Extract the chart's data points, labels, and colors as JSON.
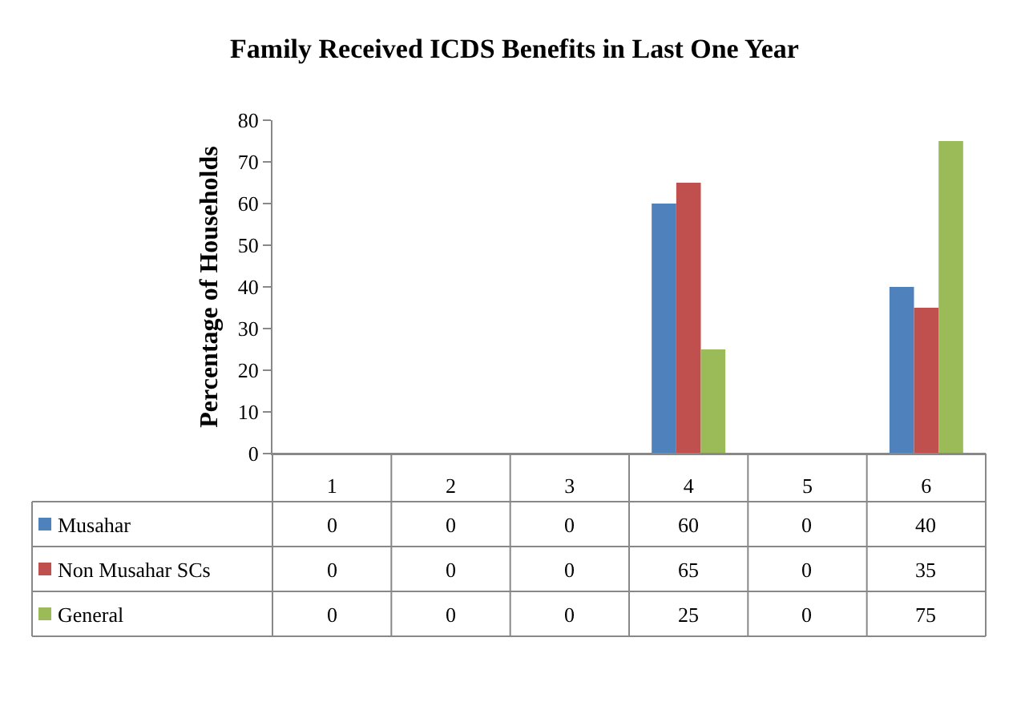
{
  "chart_data": {
    "type": "bar",
    "title": "Family Received ICDS Benefits in Last One Year",
    "ylabel": "Percentage of Households",
    "categories": [
      "1",
      "2",
      "3",
      "4",
      "5",
      "6"
    ],
    "series": [
      {
        "name": "Musahar",
        "color": "#4f81bd",
        "values": [
          0,
          0,
          0,
          60,
          0,
          40
        ]
      },
      {
        "name": "Non Musahar SCs",
        "color": "#c0504d",
        "values": [
          0,
          0,
          0,
          65,
          0,
          35
        ]
      },
      {
        "name": "General",
        "color": "#9bbb59",
        "values": [
          0,
          0,
          0,
          25,
          0,
          75
        ]
      }
    ],
    "ylim": [
      0,
      80
    ],
    "yticks": [
      0,
      10,
      20,
      30,
      40,
      50,
      60,
      70,
      80
    ],
    "legend": "left",
    "data_labels": true
  }
}
